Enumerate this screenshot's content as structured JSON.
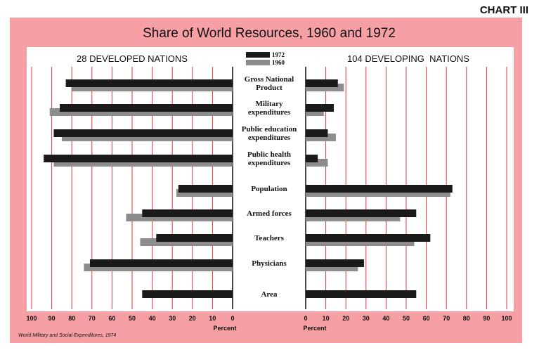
{
  "chart_label": "CHART III",
  "chart_data": {
    "type": "bar",
    "title": "Share of World Resources, 1960 and 1972",
    "left_panel_title": "28 DEVELOPED NATIONS",
    "right_panel_title": "104 DEVELOPING  NATIONS",
    "categories": [
      "Gross National\nProduct",
      "Military\nexpenditures",
      "Public education\nexpenditures",
      "Public health\nexpenditures",
      "Population",
      "Armed forces",
      "Teachers",
      "Physicians",
      "Area"
    ],
    "series": [
      {
        "name": "1972",
        "color": "#1a1a1a",
        "developed": [
          83,
          86,
          89,
          94,
          27,
          45,
          38,
          71,
          45
        ],
        "developing": [
          16,
          14,
          11,
          6,
          73,
          55,
          62,
          29,
          55
        ]
      },
      {
        "name": "1960",
        "color": "#8c8c8c",
        "developed": [
          80,
          91,
          85,
          89,
          28,
          53,
          46,
          74,
          null
        ],
        "developing": [
          19,
          9,
          15,
          11,
          72,
          47,
          54,
          26,
          null
        ]
      }
    ],
    "xlim": [
      0,
      100
    ],
    "x_ticks": [
      100,
      90,
      80,
      70,
      60,
      50,
      40,
      30,
      20,
      10,
      0
    ],
    "right_x_ticks": [
      0,
      10,
      20,
      30,
      40,
      50,
      60,
      70,
      80,
      90,
      100
    ],
    "xlabel": "Percent",
    "source": "World Military and Social Expenditures, 1974",
    "grid": true
  },
  "colors": {
    "frame": "#f6a0a5",
    "gridline": "#e8323c",
    "bar_1972": "#1a1a1a",
    "bar_1960": "#8c8c8c",
    "plot_bg": "#ffffff"
  }
}
